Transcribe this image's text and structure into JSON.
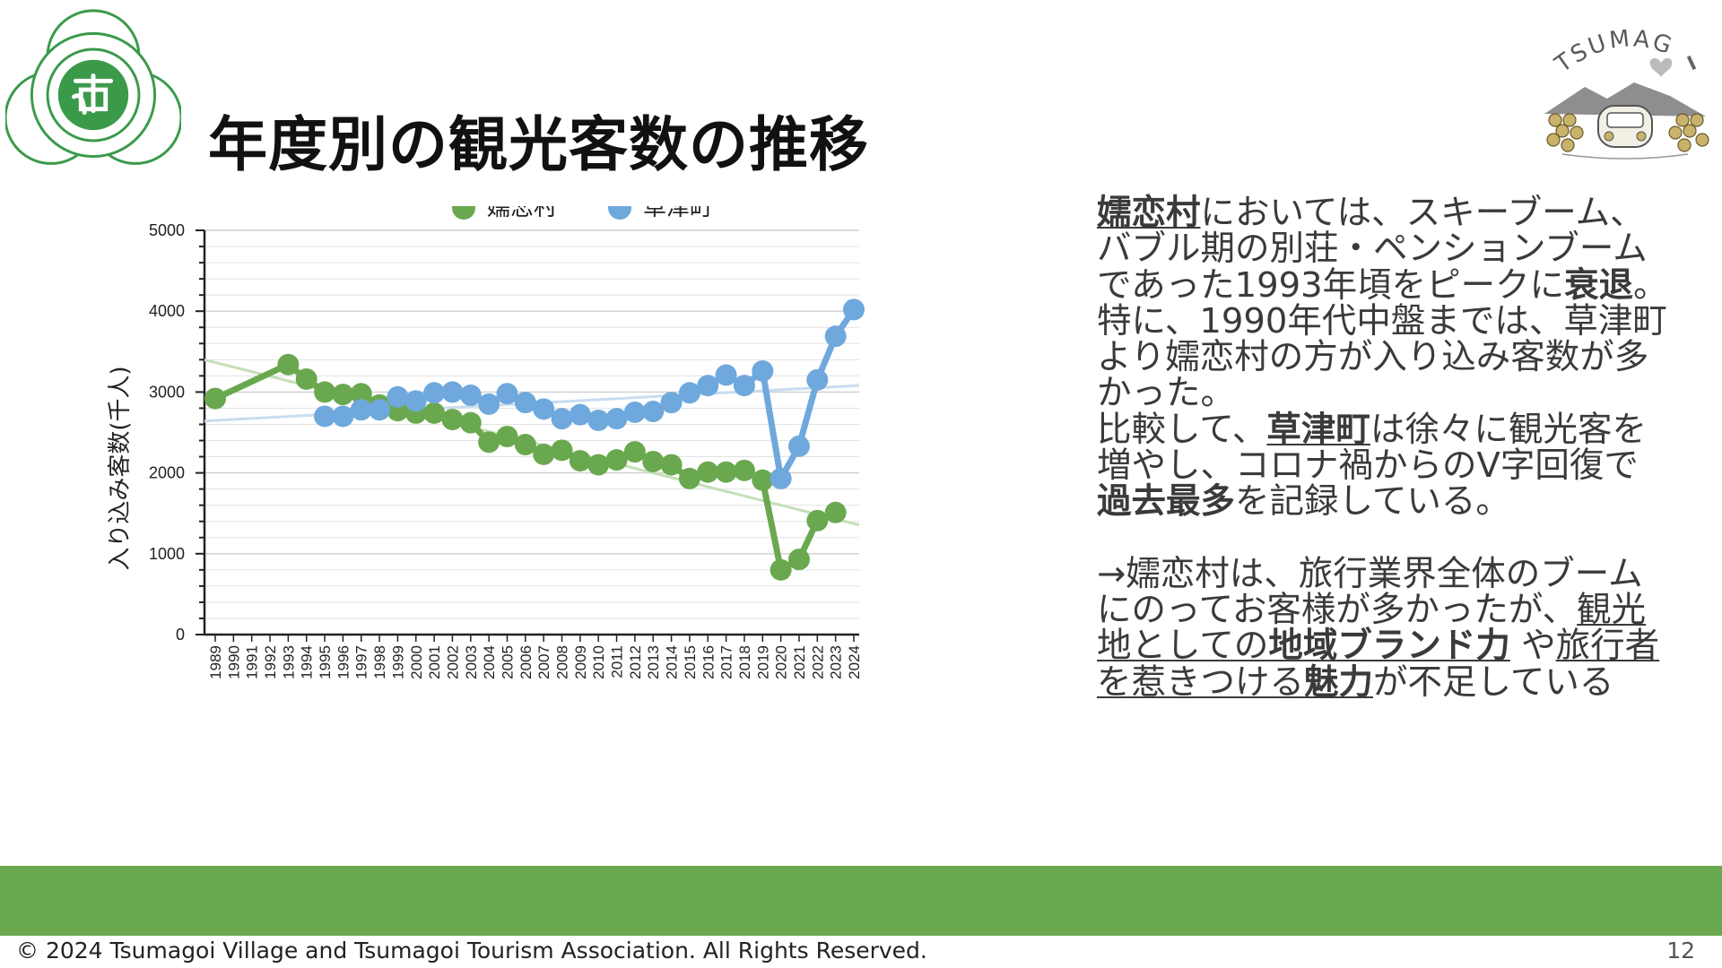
{
  "slide": {
    "title": "年度別の観光客数の推移",
    "page_number": "12",
    "footer": "© 2024 Tsumagoi Village and Tsumagoi Tourism Association. All Rights Reserved.",
    "logo_right_text": "TSUMAG",
    "colors": {
      "green": "#6aa84f",
      "blue": "#6fa8dc",
      "band": "#6aa84f"
    }
  },
  "commentary": {
    "p1": [
      {
        "t": "嬬恋村",
        "u": true,
        "b": true
      },
      {
        "t": "においては、スキーブーム、バブル期の別荘・ペンションブームであった1993年頃をピークに"
      },
      {
        "t": "衰退",
        "b": true
      },
      {
        "t": "。特に、1990年代中盤までは、草津町より嬬恋村の方が入り込み客数が多かった。"
      }
    ],
    "p2": [
      {
        "t": "比較して、"
      },
      {
        "t": "草津町",
        "u": true,
        "b": true
      },
      {
        "t": "は徐々に観光客を増やし、コロナ禍からのV字回復で"
      },
      {
        "t": "過去最多",
        "b": true
      },
      {
        "t": "を記録している。"
      }
    ],
    "p3": [
      {
        "t": "→嬬恋村は、旅行業界全体のブームにのってお客様が多かったが、"
      },
      {
        "t": "観光地としての",
        "u": true
      },
      {
        "t": "地域ブランド力",
        "u": true,
        "b": true
      },
      {
        "t": " や"
      },
      {
        "t": "旅行者を惹きつける",
        "u": true
      },
      {
        "t": "魅力",
        "u": true,
        "b": true
      },
      {
        "t": "が不足している"
      }
    ]
  },
  "chart_data": {
    "type": "line",
    "title": "",
    "xlabel": "",
    "ylabel": "入り込み客数(千人)",
    "ylim": [
      0,
      5000
    ],
    "yticks": [
      0,
      1000,
      2000,
      3000,
      4000,
      5000
    ],
    "legend_position": "top",
    "grid": true,
    "trendlines": true,
    "categories": [
      "1989",
      "1990",
      "1991",
      "1992",
      "1993",
      "1994",
      "1995",
      "1996",
      "1997",
      "1998",
      "1999",
      "2000",
      "2001",
      "2002",
      "2003",
      "2004",
      "2005",
      "2006",
      "2007",
      "2008",
      "2009",
      "2010",
      "2011",
      "2012",
      "2013",
      "2014",
      "2015",
      "2016",
      "2017",
      "2018",
      "2019",
      "2020",
      "2021",
      "2022",
      "2023",
      "2024"
    ],
    "series": [
      {
        "name": "嬬恋村",
        "color": "#6aa84f",
        "trend_color": "#c5dfb6",
        "values": [
          2920,
          null,
          null,
          null,
          3340,
          3160,
          3000,
          2970,
          2980,
          2840,
          2770,
          2740,
          2740,
          2660,
          2620,
          2380,
          2450,
          2350,
          2230,
          2280,
          2150,
          2100,
          2160,
          2260,
          2140,
          2100,
          1930,
          2010,
          2010,
          2030,
          1910,
          800,
          930,
          1410,
          1510,
          null
        ]
      },
      {
        "name": "草津町",
        "color": "#6fa8dc",
        "trend_color": "#c9dcef",
        "values": [
          null,
          null,
          null,
          null,
          null,
          null,
          2700,
          2700,
          2780,
          2780,
          2940,
          2890,
          2990,
          3000,
          2960,
          2850,
          2980,
          2870,
          2790,
          2670,
          2720,
          2650,
          2670,
          2750,
          2760,
          2870,
          2990,
          3080,
          3210,
          3080,
          3260,
          1930,
          2330,
          3150,
          3690,
          4020
        ]
      }
    ]
  }
}
